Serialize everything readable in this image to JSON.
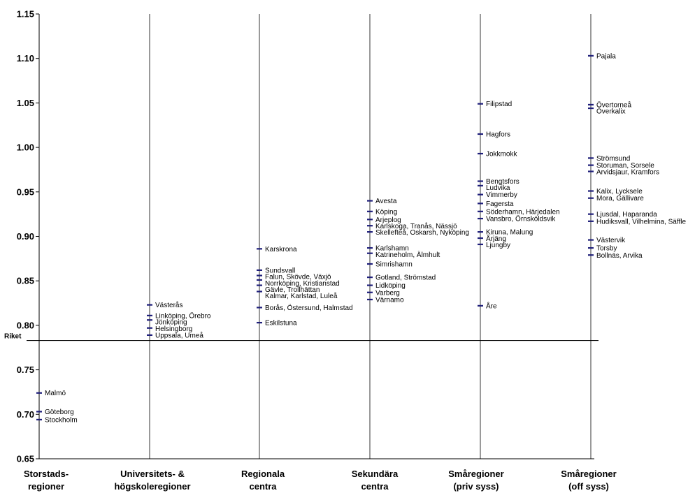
{
  "chart_data": {
    "type": "scatter",
    "title": "",
    "xlabel": "",
    "ylabel": "",
    "ylim": [
      0.65,
      1.15
    ],
    "yticks": [
      "0.65",
      "0.70",
      "0.75",
      "0.80",
      "0.85",
      "0.90",
      "0.95",
      "1.00",
      "1.05",
      "1.10",
      "1.15"
    ],
    "grid": "vertical lines at each category",
    "marker": "short horizontal dash",
    "marker_color": "#1f1f7a",
    "reference": {
      "label": "Riket",
      "value": 0.783
    },
    "categories": [
      {
        "label": [
          "Storstads-",
          "regioner"
        ],
        "points": [
          {
            "label": "Malmö",
            "value": 0.724
          },
          {
            "label": "Göteborg",
            "value": 0.703
          },
          {
            "label": "Stockholm",
            "value": 0.694
          }
        ]
      },
      {
        "label": [
          "Universitets- &",
          "högskoleregioner"
        ],
        "points": [
          {
            "label": "Västerås",
            "value": 0.823
          },
          {
            "label": "Linköping, Örebro",
            "value": 0.811
          },
          {
            "label": "Jönköping",
            "value": 0.806
          },
          {
            "label": "Helsingborg",
            "value": 0.797
          },
          {
            "label": "Uppsala, Umeå",
            "value": 0.789
          }
        ]
      },
      {
        "label": [
          "Regionala",
          "centra"
        ],
        "points": [
          {
            "label": "Karskrona",
            "value": 0.886
          },
          {
            "label": "Sundsvall",
            "value": 0.862
          },
          {
            "label": "Falun, Skövde, Växjö",
            "value": 0.856
          },
          {
            "label": "Norrköping, Kristianstad",
            "value": 0.851
          },
          {
            "label": "Gävle, Trollhättan",
            "value": 0.845
          },
          {
            "label": "Kalmar, Karlstad, Luleå",
            "value": 0.838
          },
          {
            "label": "Borås, Östersund, Halmstad",
            "value": 0.82
          },
          {
            "label": "Eskilstuna",
            "value": 0.803
          }
        ]
      },
      {
        "label": [
          "Sekundära",
          "centra"
        ],
        "points": [
          {
            "label": "Avesta",
            "value": 0.94
          },
          {
            "label": "Köping",
            "value": 0.928
          },
          {
            "label": "Arjeplog",
            "value": 0.919
          },
          {
            "label": "Karlskoga, Tranås, Nässjö",
            "value": 0.912
          },
          {
            "label": "Skellefteå, Oskarsh, Nyköping",
            "value": 0.905
          },
          {
            "label": "Karlshamn",
            "value": 0.887
          },
          {
            "label": "Katrineholm, Älmhult",
            "value": 0.881
          },
          {
            "label": "Simrishamn",
            "value": 0.869
          },
          {
            "label": "Gotland, Strömstad",
            "value": 0.854
          },
          {
            "label": "Lidköping",
            "value": 0.845
          },
          {
            "label": "Varberg",
            "value": 0.837
          },
          {
            "label": "Värnamo",
            "value": 0.829
          }
        ]
      },
      {
        "label": [
          "Småregioner",
          "(priv syss)"
        ],
        "points": [
          {
            "label": "Filipstad",
            "value": 1.049
          },
          {
            "label": "Hagfors",
            "value": 1.015
          },
          {
            "label": "Jokkmokk",
            "value": 0.993
          },
          {
            "label": "Bengtsfors",
            "value": 0.962
          },
          {
            "label": "Ludvika",
            "value": 0.957
          },
          {
            "label": "Vimmerby",
            "value": 0.947
          },
          {
            "label": "Fagersta",
            "value": 0.937
          },
          {
            "label": "Söderhamn, Härjedalen",
            "value": 0.928
          },
          {
            "label": "Vansbro, Örnsköldsvik",
            "value": 0.92
          },
          {
            "label": "Kiruna, Malung",
            "value": 0.905
          },
          {
            "label": "Årjäng",
            "value": 0.898
          },
          {
            "label": "Ljungby",
            "value": 0.891
          },
          {
            "label": "Åre",
            "value": 0.822
          }
        ]
      },
      {
        "label": [
          "Småregioner",
          "(off syss)"
        ],
        "points": [
          {
            "label": "Pajala",
            "value": 1.103
          },
          {
            "label": "Övertorneå",
            "value": 1.048
          },
          {
            "label": "Överkalix",
            "value": 1.044
          },
          {
            "label": "Strömsund",
            "value": 0.988
          },
          {
            "label": "Storuman, Sorsele",
            "value": 0.98
          },
          {
            "label": "Arvidsjaur, Kramfors",
            "value": 0.973
          },
          {
            "label": "Kalix, Lycksele",
            "value": 0.951
          },
          {
            "label": "Mora, Gällivare",
            "value": 0.943
          },
          {
            "label": "Ljusdal, Haparanda",
            "value": 0.925
          },
          {
            "label": "Hudiksvall, Vilhelmina, Säffle",
            "value": 0.917
          },
          {
            "label": "Västervik",
            "value": 0.896
          },
          {
            "label": "Torsby",
            "value": 0.887
          },
          {
            "label": "Bollnäs, Arvika",
            "value": 0.879
          }
        ]
      }
    ]
  }
}
